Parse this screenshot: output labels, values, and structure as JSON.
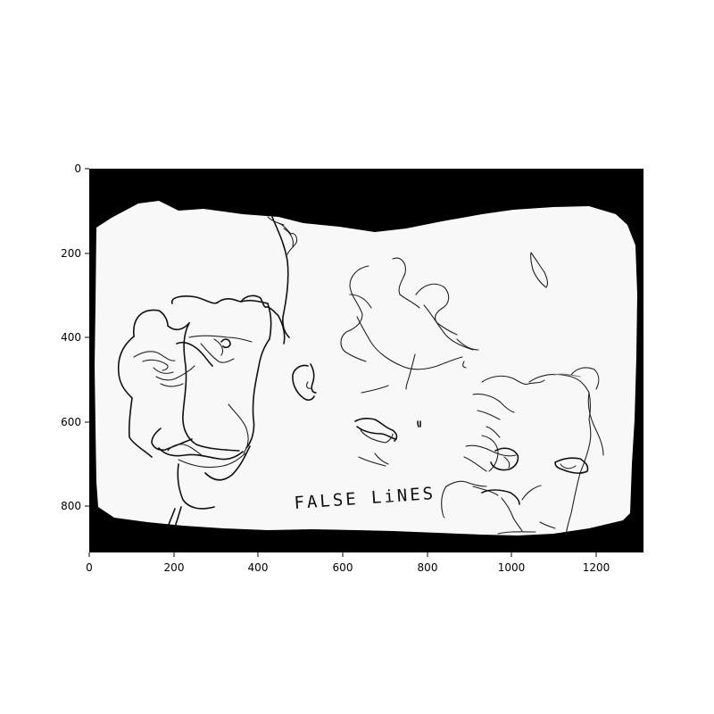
{
  "image": {
    "caption_text": "FALSE LiNES",
    "frame_color": "#000000",
    "paper_color": "#f8f8f8",
    "ink_color": "#111111"
  },
  "axes": {
    "x_ticks": [
      "0",
      "200",
      "400",
      "600",
      "800",
      "1000",
      "1200"
    ],
    "y_ticks": [
      "0",
      "200",
      "400",
      "600",
      "800"
    ]
  }
}
